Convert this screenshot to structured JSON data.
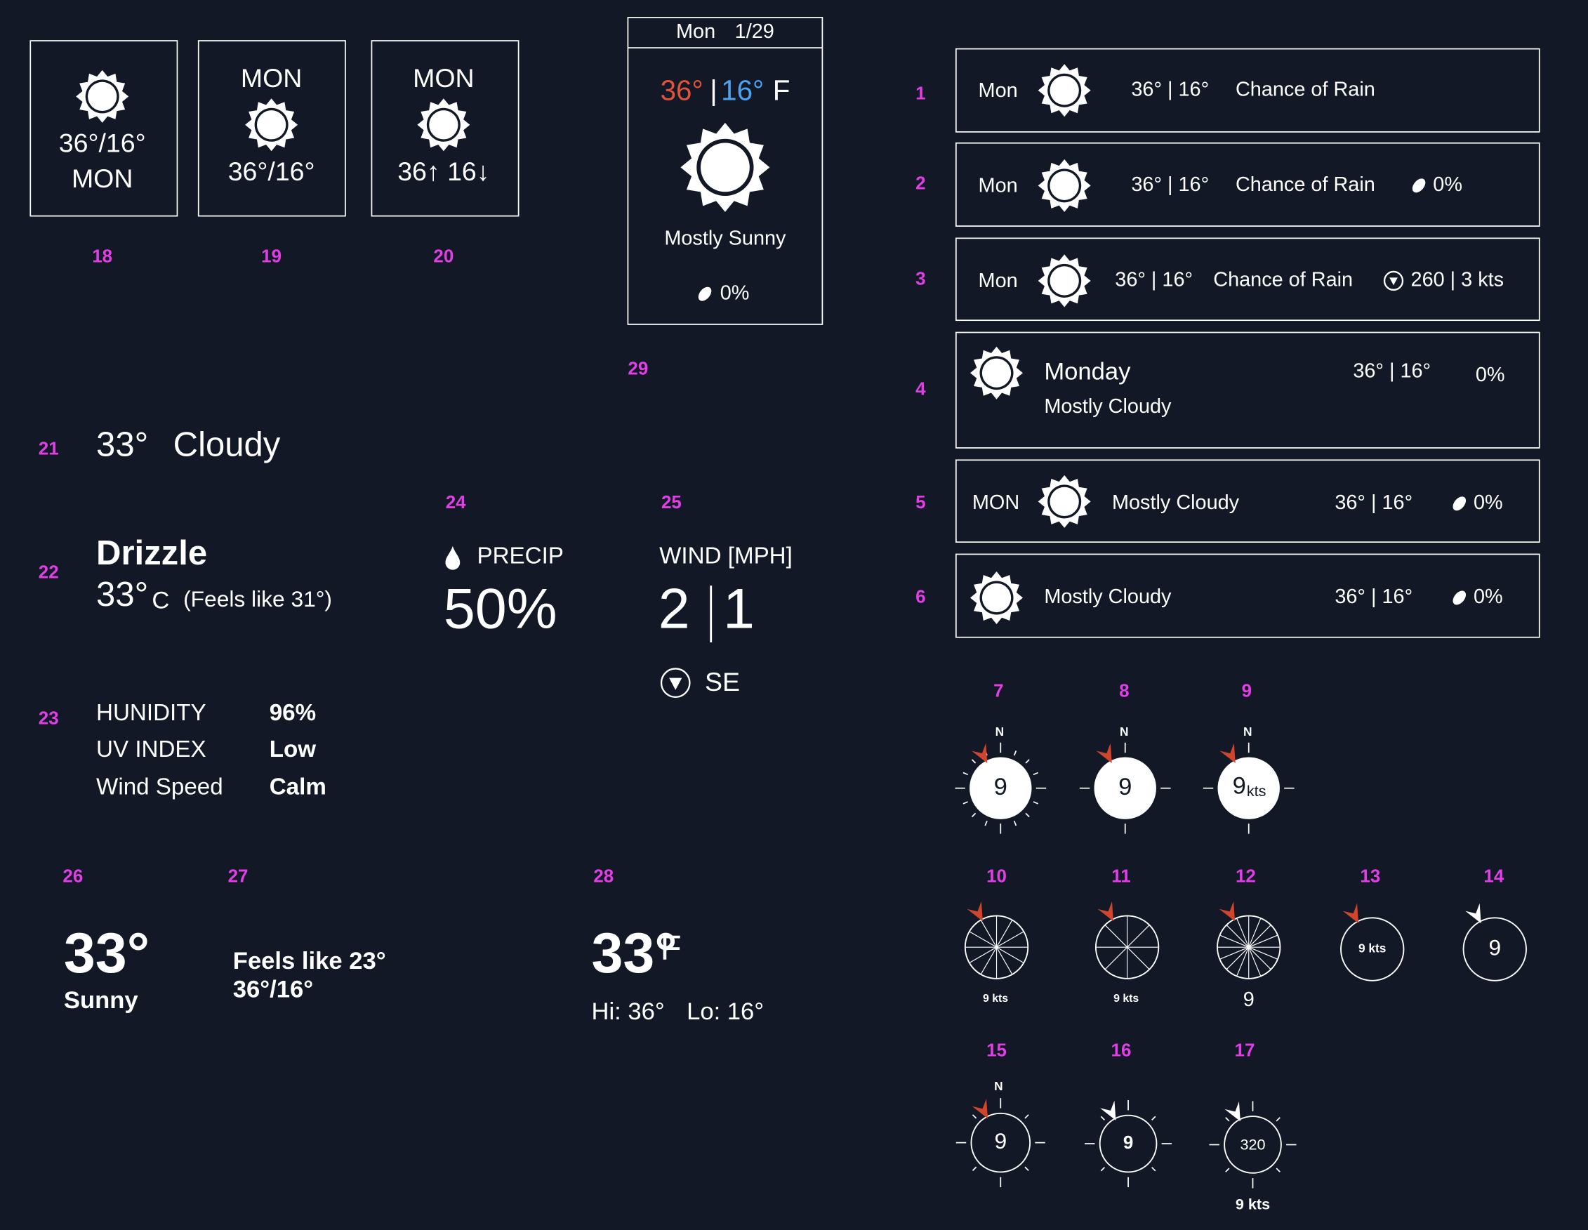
{
  "widgets": [
    {
      "label": "1",
      "texts": [
        "Mon",
        "36° | 16°",
        "Chance of Rain"
      ]
    },
    {
      "label": "2",
      "texts": [
        "Mon",
        "36° | 16°",
        "Chance of Rain",
        "0%"
      ]
    },
    {
      "label": "3",
      "texts": [
        "Mon",
        "36° | 16°",
        "Chance of Rain",
        "260 | 3 kts"
      ]
    },
    {
      "label": "4",
      "texts": [
        "Monday",
        "Mostly Cloudy",
        "36° | 16°",
        "0%"
      ]
    },
    {
      "label": "5",
      "texts": [
        "MON",
        "Mostly Cloudy",
        "36° | 16°",
        "0%"
      ]
    },
    {
      "label": "6",
      "texts": [
        "Mostly Cloudy",
        "36° | 16°",
        "0%"
      ]
    },
    {
      "label": "7",
      "texts": [
        "N",
        "9"
      ]
    },
    {
      "label": "8",
      "texts": [
        "N",
        "9"
      ]
    },
    {
      "label": "9",
      "texts": [
        "N",
        "9",
        "kts"
      ]
    },
    {
      "label": "10",
      "texts": [
        "9 kts"
      ]
    },
    {
      "label": "11",
      "texts": [
        "9 kts"
      ]
    },
    {
      "label": "12",
      "texts": [
        "9"
      ]
    },
    {
      "label": "13",
      "texts": [
        "9 kts"
      ]
    },
    {
      "label": "14",
      "texts": [
        "9"
      ]
    },
    {
      "label": "15",
      "texts": [
        "N",
        "9"
      ]
    },
    {
      "label": "16",
      "texts": [
        "9"
      ]
    },
    {
      "label": "17",
      "texts": [
        "320",
        "9 kts"
      ]
    },
    {
      "label": "18",
      "texts": [
        "36°/16°",
        "MON"
      ]
    },
    {
      "label": "19",
      "texts": [
        "MON",
        "36°/16°"
      ]
    },
    {
      "label": "20",
      "texts": [
        "MON",
        "36↑ 16↓"
      ]
    },
    {
      "label": "21",
      "texts": [
        "33°",
        "Cloudy"
      ]
    },
    {
      "label": "22",
      "texts": [
        "Drizzle",
        "33°",
        "C",
        "(Feels like 31°)"
      ]
    },
    {
      "label": "23",
      "texts": [
        "HUNIDITY",
        "96%",
        "UV INDEX",
        "Low",
        "Wind Speed",
        "Calm"
      ]
    },
    {
      "label": "24",
      "texts": [
        "PRECIP",
        "50%"
      ]
    },
    {
      "label": "25",
      "texts": [
        "WIND [MPH]",
        "2",
        "1",
        "SE"
      ]
    },
    {
      "label": "26",
      "texts": [
        "33°",
        "Sunny"
      ]
    },
    {
      "label": "27",
      "texts": [
        "Feels like 23°",
        "36°/16°"
      ]
    },
    {
      "label": "28",
      "texts": [
        "33°",
        "F",
        "Hi: 36°",
        "Lo: 16°"
      ]
    },
    {
      "label": "29",
      "texts": [
        "Mon",
        "1/29",
        "36°",
        "|",
        "16°",
        "F",
        "Mostly Sunny",
        "0%"
      ]
    }
  ]
}
